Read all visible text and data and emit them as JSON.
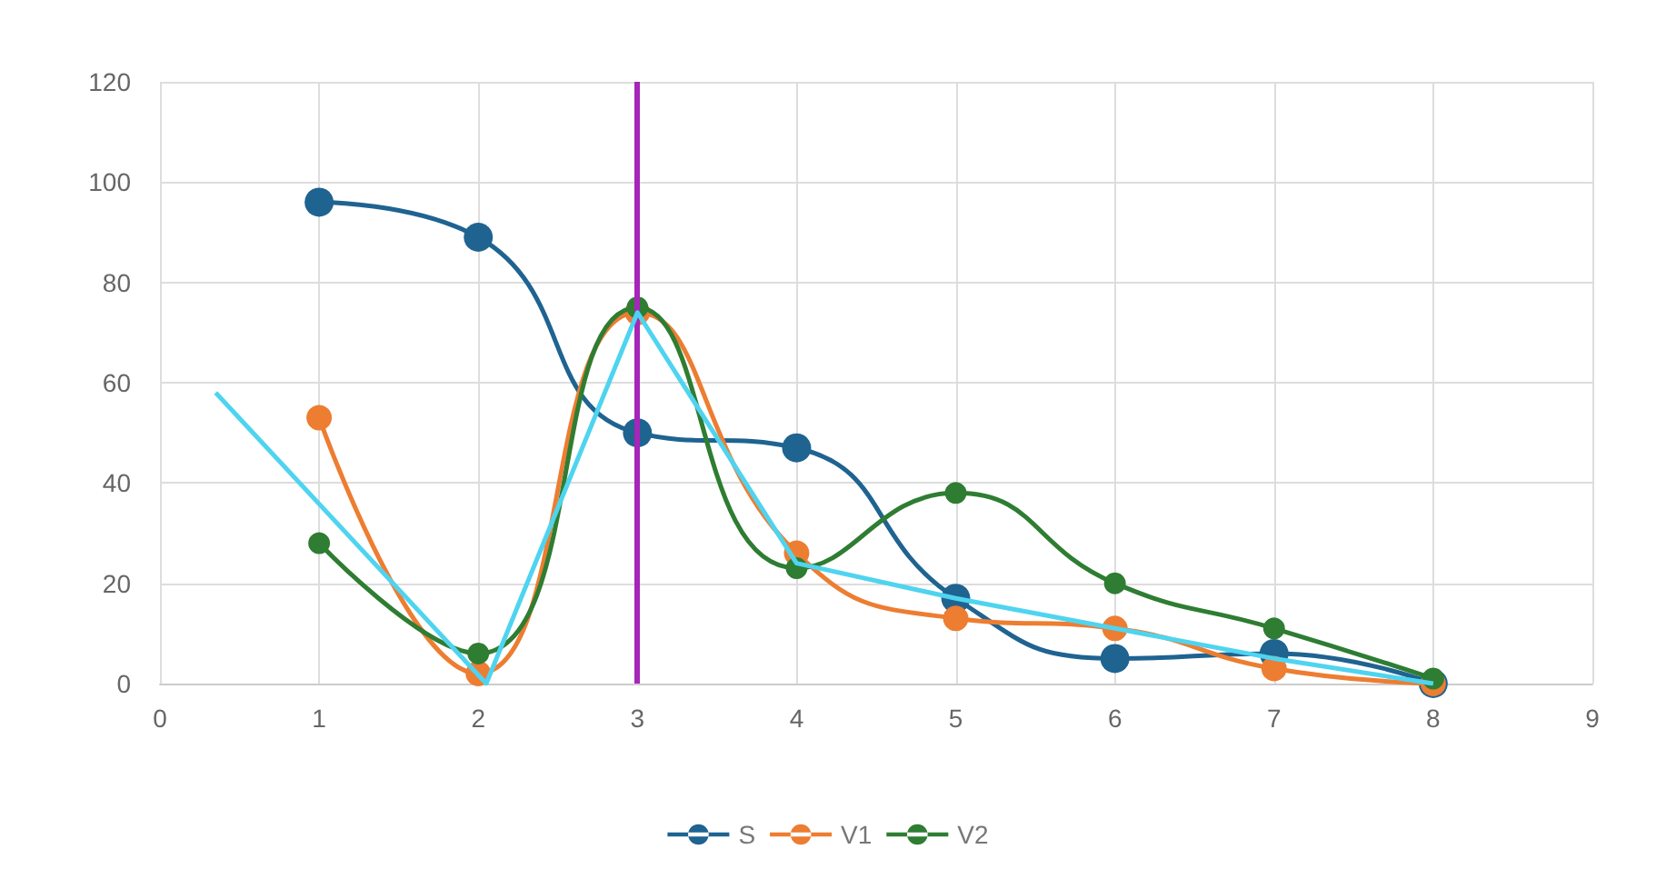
{
  "chart_data": {
    "type": "line",
    "x": [
      1,
      2,
      3,
      4,
      5,
      6,
      7,
      8
    ],
    "series": [
      {
        "name": "S",
        "color": "#1f6391",
        "values": [
          96,
          89,
          50,
          47,
          17,
          5,
          6,
          0
        ]
      },
      {
        "name": "V1",
        "color": "#ed7d31",
        "values": [
          53,
          2,
          74,
          26,
          13,
          11,
          3,
          0
        ]
      },
      {
        "name": "V2",
        "color": "#2e7d32",
        "values": [
          28,
          6,
          75,
          23,
          38,
          20,
          11,
          1
        ]
      },
      {
        "color": "#4fd4f0",
        "marker": "none",
        "x": [
          0.35,
          2.05,
          3,
          4,
          5,
          6,
          7,
          8
        ],
        "values": [
          58,
          0,
          74,
          24,
          17,
          11,
          5,
          0
        ]
      }
    ],
    "xlim": [
      0,
      9
    ],
    "xticks": [
      0,
      1,
      2,
      3,
      4,
      5,
      6,
      7,
      8,
      9
    ],
    "ylim": [
      0,
      120
    ],
    "yticks": [
      0,
      20,
      40,
      60,
      80,
      100,
      120
    ],
    "ref_lines": [
      {
        "axis": "x",
        "value": 3,
        "color": "#a526b8"
      }
    ],
    "grid": true,
    "legend": "bottom",
    "marker": "circle"
  }
}
